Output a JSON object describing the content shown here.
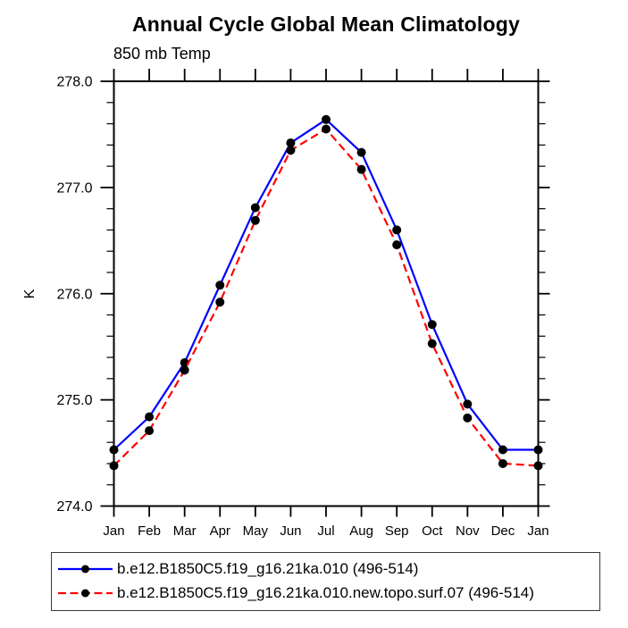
{
  "chart_data": {
    "type": "line",
    "title": "Annual Cycle Global Mean Climatology",
    "subtitle": "850 mb Temp",
    "ylabel": "K",
    "xlabel": "",
    "categories": [
      "Jan",
      "Feb",
      "Mar",
      "Apr",
      "May",
      "Jun",
      "Jul",
      "Aug",
      "Sep",
      "Oct",
      "Nov",
      "Dec",
      "Jan"
    ],
    "series": [
      {
        "name": "b.e12.B1850C5.f19_g16.21ka.010 (496-514)",
        "color": "#0000ff",
        "line_style": "solid",
        "marker": "circle",
        "marker_color": "#000000",
        "values": [
          274.53,
          274.84,
          275.35,
          276.08,
          276.81,
          277.42,
          277.64,
          277.33,
          276.6,
          275.71,
          274.96,
          274.53,
          274.53
        ]
      },
      {
        "name": "b.e12.B1850C5.f19_g16.21ka.010.new.topo.surf.07 (496-514)",
        "color": "#ff0000",
        "line_style": "dashed",
        "marker": "circle",
        "marker_color": "#000000",
        "values": [
          274.38,
          274.71,
          275.28,
          275.92,
          276.69,
          277.35,
          277.55,
          277.17,
          276.46,
          275.53,
          274.83,
          274.4,
          274.38
        ]
      }
    ],
    "ylim": [
      274.0,
      278.0
    ],
    "ytick_major": 1.0,
    "ytick_minor": 0.2,
    "ytick_labels": [
      "274.0",
      "275.0",
      "276.0",
      "277.0",
      "278.0"
    ],
    "grid": false,
    "axis_color": "#000000",
    "legend_position": "bottom-left-box"
  }
}
